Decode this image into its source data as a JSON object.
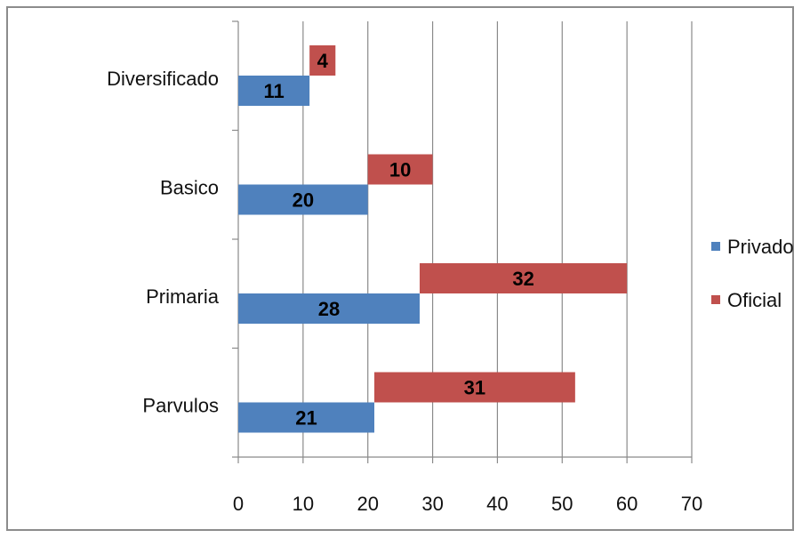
{
  "chart_data": {
    "type": "bar",
    "orientation": "horizontal",
    "categories": [
      "Parvulos",
      "Primaria",
      "Basico",
      "Diversificado"
    ],
    "series": [
      {
        "name": "Privado",
        "color": "#4f81bd",
        "start": [
          0,
          0,
          0,
          0
        ],
        "values": [
          21,
          28,
          20,
          11
        ]
      },
      {
        "name": "Oficial",
        "color": "#c0504d",
        "start": [
          21,
          28,
          20,
          11
        ],
        "values": [
          31,
          32,
          10,
          4
        ]
      }
    ],
    "xlim": [
      0,
      70
    ],
    "xticks": [
      0,
      10,
      20,
      30,
      40,
      50,
      60,
      70
    ],
    "grid": true,
    "legend_position": "right",
    "title": "",
    "xlabel": "",
    "ylabel": ""
  }
}
